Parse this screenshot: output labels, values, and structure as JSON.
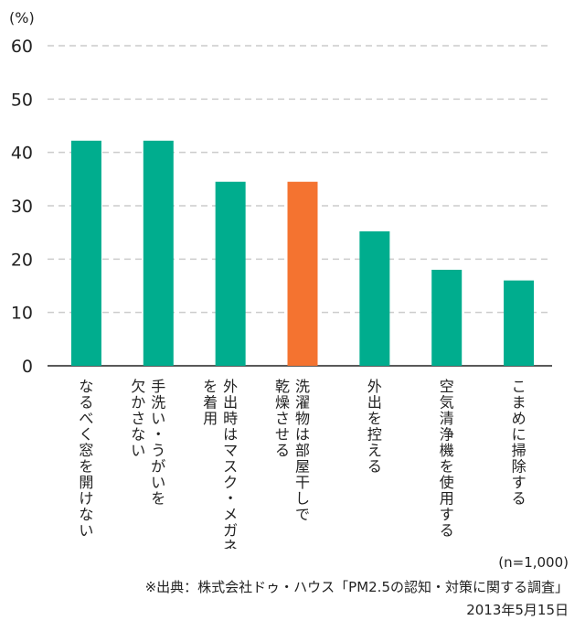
{
  "chart_data": {
    "type": "bar",
    "unit_label": "(%)",
    "ylim": [
      0,
      60
    ],
    "yticks": [
      0,
      10,
      20,
      30,
      40,
      50,
      60
    ],
    "grid": true,
    "categories": [
      [
        "なるべく窓を開けない"
      ],
      [
        "手洗い・うがいを",
        "欠かさない"
      ],
      [
        "外出時はマスク・メガネ",
        "を着用"
      ],
      [
        "洗濯物は部屋干しで",
        "乾燥させる"
      ],
      [
        "外出を控える"
      ],
      [
        "空気清浄機を使用する"
      ],
      [
        "こまめに掃除する"
      ]
    ],
    "values": [
      42.2,
      42.2,
      34.5,
      34.5,
      25.2,
      18.0,
      16.0
    ],
    "bar_colors": [
      "#00ad8e",
      "#00ad8e",
      "#00ad8e",
      "#f47330",
      "#00ad8e",
      "#00ad8e",
      "#00ad8e"
    ]
  },
  "colors": {
    "primary": "#00ad8e",
    "highlight": "#f47330",
    "grid": "#cccccc",
    "axis": "#222222"
  },
  "footer": {
    "sample": "(n=1,000)",
    "source": "※出典：株式会社ドゥ・ハウス「PM2.5の認知・対策に関する調査」",
    "date": "2013年5月15日"
  }
}
